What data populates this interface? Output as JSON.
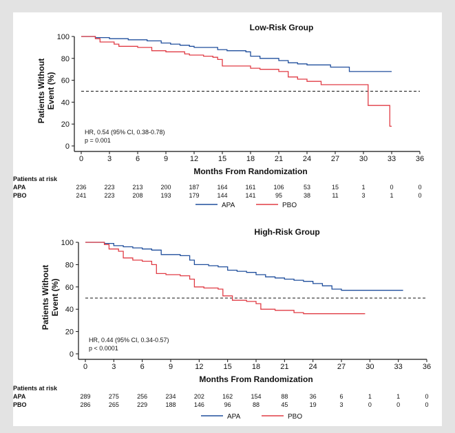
{
  "chart_data": [
    {
      "type": "line",
      "title": "Low-Risk Group",
      "xlabel": "Months From Randomization",
      "ylabel_lines": [
        "Patients Without",
        "Event (%)"
      ],
      "xlim": [
        0,
        36
      ],
      "ylim": [
        0,
        100
      ],
      "xticks": [
        "0",
        "3",
        "6",
        "9",
        "12",
        "15",
        "18",
        "21",
        "24",
        "27",
        "30",
        "33",
        "36"
      ],
      "yticks": [
        "0",
        "20",
        "40",
        "60",
        "80",
        "100"
      ],
      "reference_line_y": 50,
      "annotation": [
        "HR, 0.54 (95% CI, 0.38-0.78)",
        "p = 0.001"
      ],
      "series": [
        {
          "name": "APA",
          "color": "#1f4e9c",
          "points": [
            [
              0,
              100
            ],
            [
              1.5,
              99
            ],
            [
              3,
              98
            ],
            [
              5,
              97
            ],
            [
              6,
              97
            ],
            [
              7,
              96
            ],
            [
              8.5,
              94
            ],
            [
              9.5,
              93
            ],
            [
              10.5,
              92
            ],
            [
              11.5,
              91
            ],
            [
              12,
              90
            ],
            [
              13.5,
              90
            ],
            [
              14.5,
              88
            ],
            [
              15.5,
              87
            ],
            [
              17.5,
              86
            ],
            [
              18,
              82
            ],
            [
              19,
              80
            ],
            [
              21,
              78
            ],
            [
              22,
              76
            ],
            [
              23,
              75
            ],
            [
              24,
              74
            ],
            [
              25,
              74
            ],
            [
              26.5,
              72
            ],
            [
              28,
              72
            ],
            [
              28.5,
              68
            ],
            [
              33,
              68
            ]
          ]
        },
        {
          "name": "PBO",
          "color": "#e03b44",
          "points": [
            [
              0,
              100
            ],
            [
              1.5,
              98
            ],
            [
              2,
              95
            ],
            [
              3.5,
              93
            ],
            [
              4,
              91
            ],
            [
              6,
              90
            ],
            [
              7.5,
              87
            ],
            [
              9,
              86
            ],
            [
              10,
              86
            ],
            [
              11,
              84
            ],
            [
              11.5,
              83
            ],
            [
              13,
              82
            ],
            [
              14,
              81
            ],
            [
              14.5,
              79
            ],
            [
              15,
              73
            ],
            [
              16,
              73
            ],
            [
              17,
              73
            ],
            [
              18,
              71
            ],
            [
              19,
              70
            ],
            [
              20,
              70
            ],
            [
              21,
              68
            ],
            [
              22,
              63
            ],
            [
              23,
              61
            ],
            [
              24,
              59
            ],
            [
              25,
              59
            ],
            [
              25.5,
              56
            ],
            [
              30.5,
              56
            ],
            [
              30.5,
              37
            ],
            [
              32.7,
              37
            ],
            [
              32.8,
              18
            ],
            [
              33,
              18
            ]
          ]
        }
      ],
      "risk_table": {
        "header": "Patients at risk",
        "rows": [
          {
            "label": "APA",
            "values": [
              "236",
              "223",
              "213",
              "200",
              "187",
              "164",
              "161",
              "106",
              "53",
              "15",
              "1",
              "0",
              "0"
            ]
          },
          {
            "label": "PBO",
            "values": [
              "241",
              "223",
              "208",
              "193",
              "179",
              "144",
              "141",
              "95",
              "38",
              "11",
              "3",
              "1",
              "0"
            ]
          }
        ]
      },
      "legend": [
        "APA",
        "PBO"
      ]
    },
    {
      "type": "line",
      "title": "High-Risk Group",
      "xlabel": "Months From Randomization",
      "ylabel_lines": [
        "Patients Without",
        "Event (%)"
      ],
      "xlim": [
        0,
        36
      ],
      "ylim": [
        0,
        100
      ],
      "xticks": [
        "0",
        "3",
        "6",
        "9",
        "12",
        "15",
        "18",
        "21",
        "24",
        "27",
        "30",
        "33",
        "36"
      ],
      "yticks": [
        "0",
        "20",
        "40",
        "60",
        "80",
        "100"
      ],
      "reference_line_y": 50,
      "annotation": [
        "HR, 0.44 (95% CI, 0.34-0.57)",
        "p < 0.0001"
      ],
      "series": [
        {
          "name": "APA",
          "color": "#1f4e9c",
          "points": [
            [
              0,
              100
            ],
            [
              2,
              99
            ],
            [
              3,
              97
            ],
            [
              4,
              96
            ],
            [
              5,
              95
            ],
            [
              6,
              94
            ],
            [
              7,
              93
            ],
            [
              8,
              89
            ],
            [
              10,
              88
            ],
            [
              11,
              84
            ],
            [
              11.5,
              80
            ],
            [
              13,
              79
            ],
            [
              14,
              78
            ],
            [
              15,
              75
            ],
            [
              16,
              74
            ],
            [
              17,
              73
            ],
            [
              18,
              71
            ],
            [
              19,
              69
            ],
            [
              20,
              68
            ],
            [
              21,
              67
            ],
            [
              22,
              66
            ],
            [
              23,
              65
            ],
            [
              24,
              63
            ],
            [
              25,
              61
            ],
            [
              26,
              58
            ],
            [
              27,
              57
            ],
            [
              30,
              57
            ],
            [
              33.5,
              57
            ]
          ]
        },
        {
          "name": "PBO",
          "color": "#e03b44",
          "points": [
            [
              0,
              100
            ],
            [
              2,
              98
            ],
            [
              2.5,
              94
            ],
            [
              3.5,
              92
            ],
            [
              4,
              86
            ],
            [
              5,
              84
            ],
            [
              6,
              83
            ],
            [
              7,
              80
            ],
            [
              7.5,
              72
            ],
            [
              8.5,
              71
            ],
            [
              10,
              70
            ],
            [
              11,
              67
            ],
            [
              11.5,
              60
            ],
            [
              12.5,
              59
            ],
            [
              14,
              58
            ],
            [
              14.5,
              52
            ],
            [
              15.5,
              48
            ],
            [
              17,
              47
            ],
            [
              18,
              45
            ],
            [
              18.5,
              40
            ],
            [
              20,
              39
            ],
            [
              21,
              39
            ],
            [
              22,
              37
            ],
            [
              23,
              36
            ],
            [
              26,
              36
            ],
            [
              29.5,
              36
            ]
          ]
        }
      ],
      "risk_table": {
        "header": "Patients at risk",
        "rows": [
          {
            "label": "APA",
            "values": [
              "289",
              "275",
              "256",
              "234",
              "202",
              "162",
              "154",
              "88",
              "36",
              "6",
              "1",
              "1",
              "0"
            ]
          },
          {
            "label": "PBO",
            "values": [
              "286",
              "265",
              "229",
              "188",
              "146",
              "96",
              "88",
              "45",
              "19",
              "3",
              "0",
              "0",
              "0"
            ]
          }
        ]
      },
      "legend": [
        "APA",
        "PBO"
      ]
    }
  ]
}
